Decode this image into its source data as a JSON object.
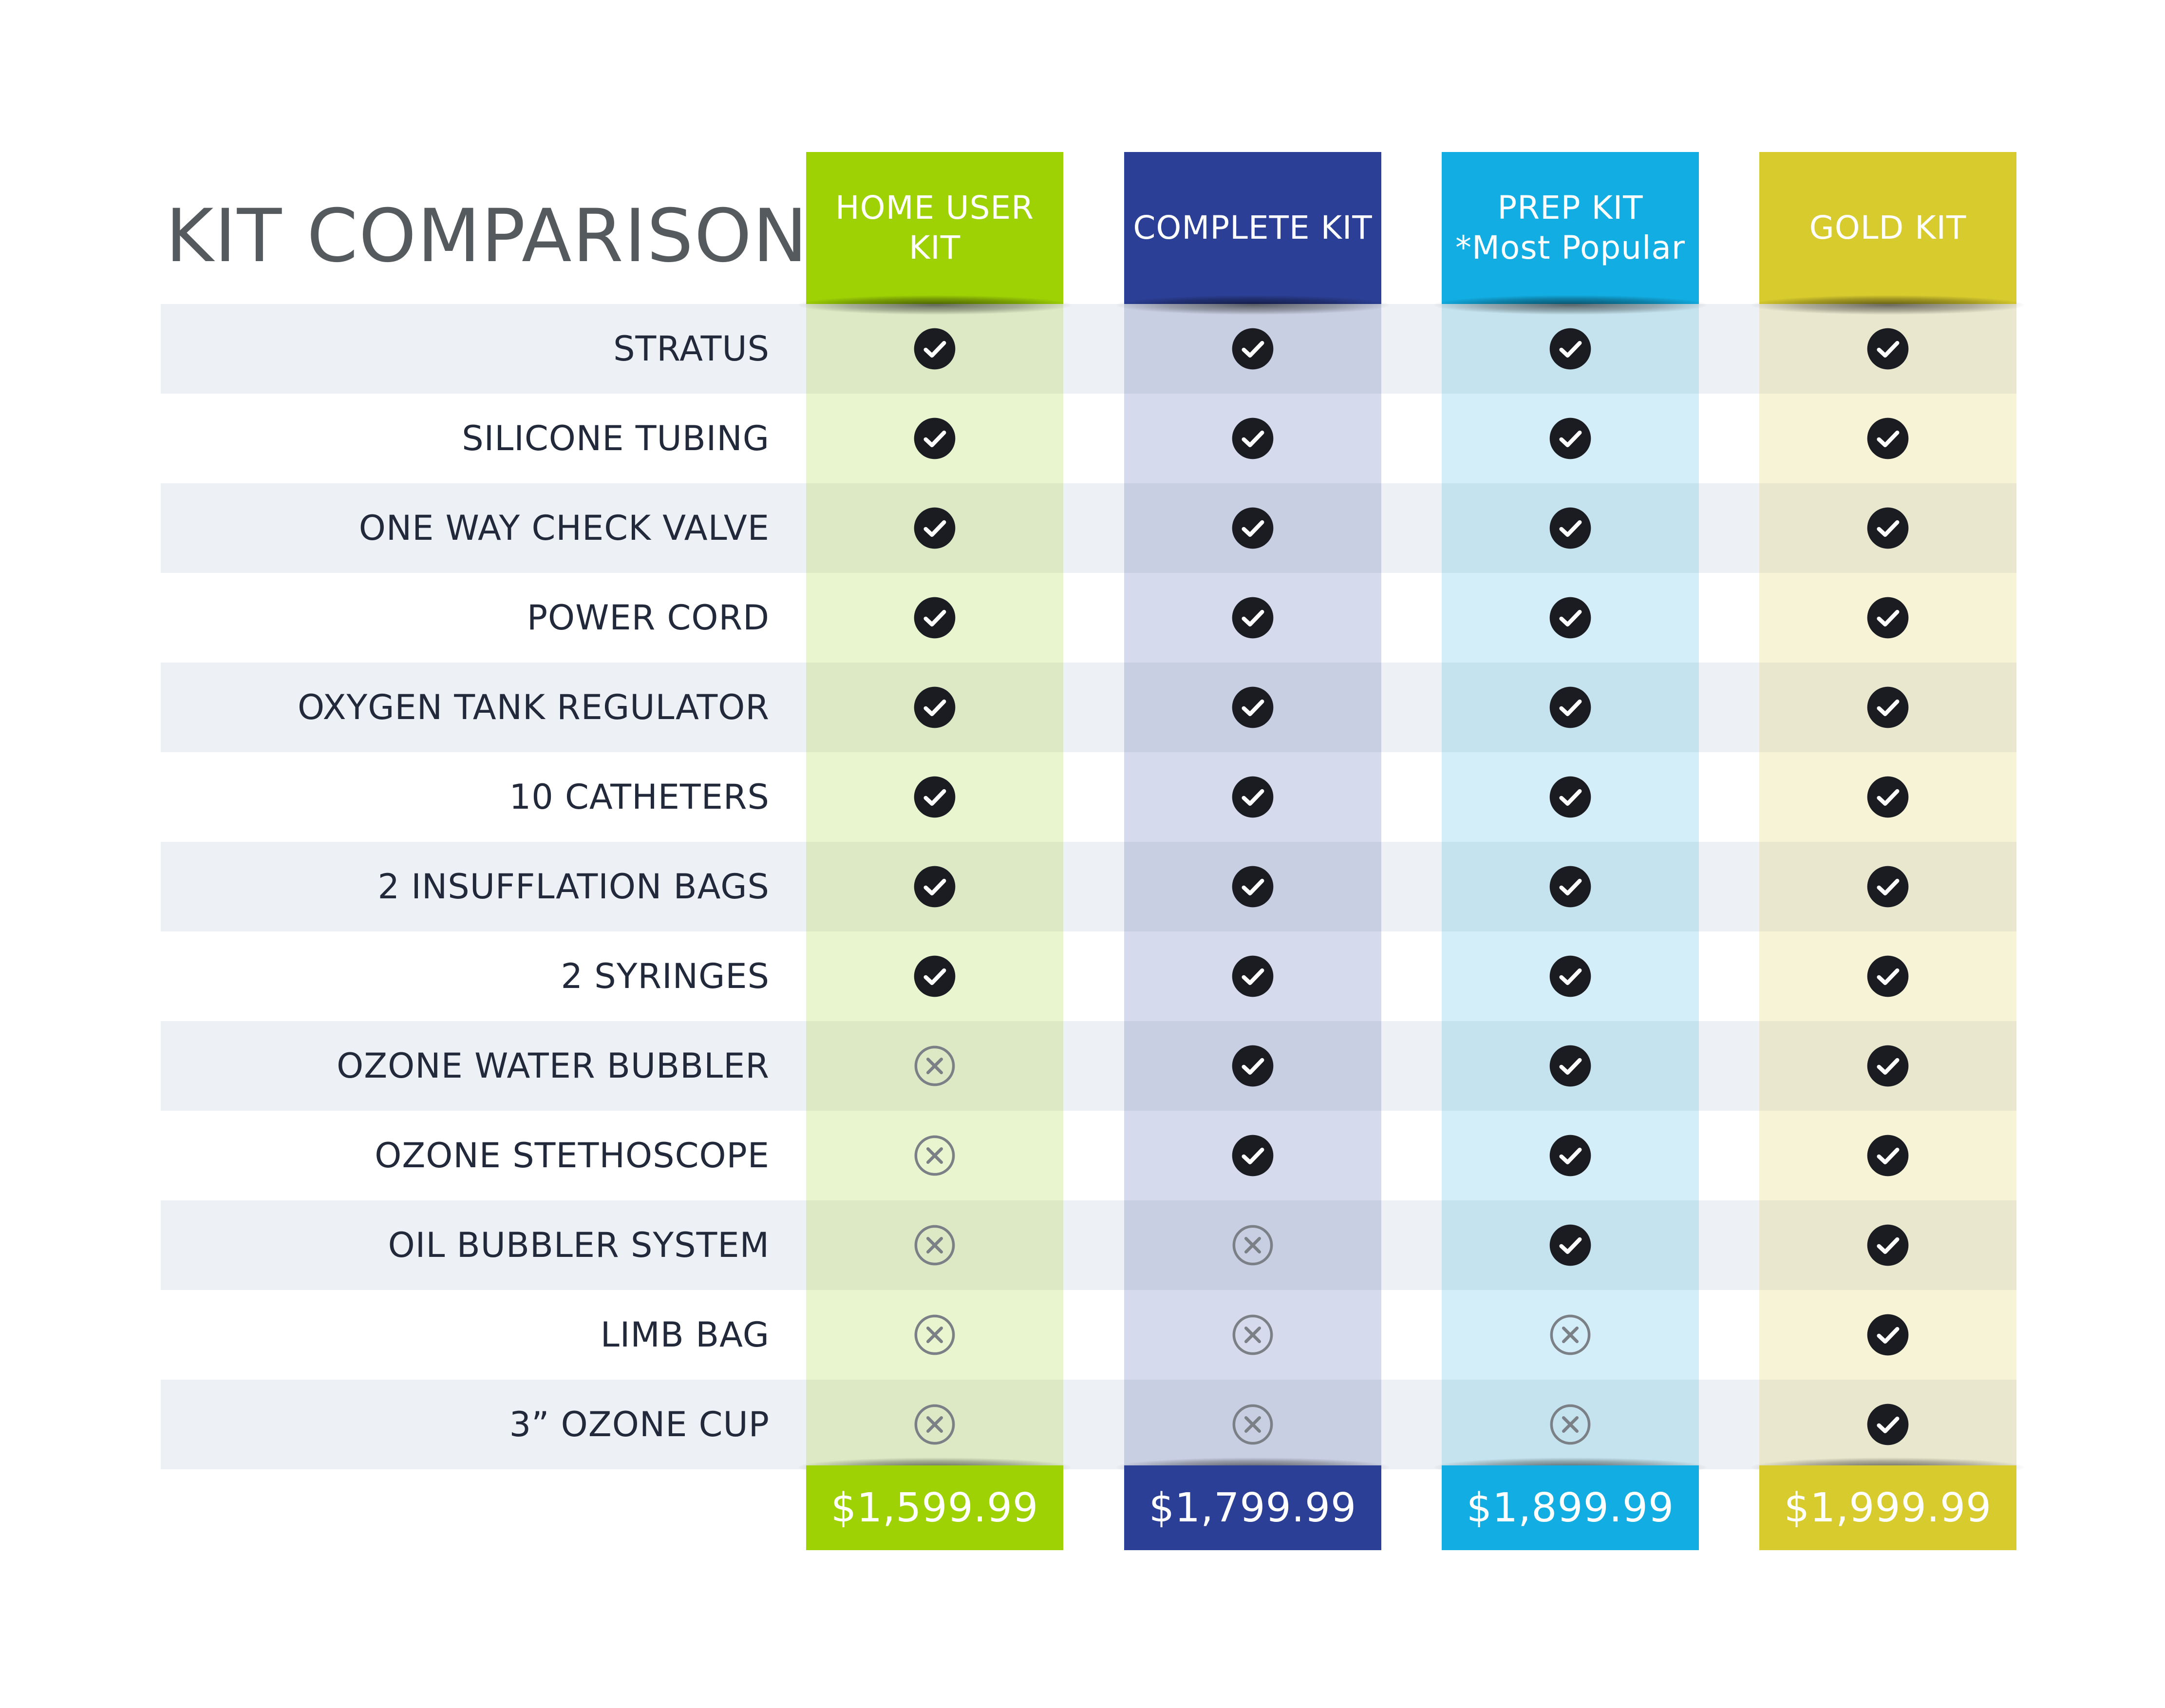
{
  "title": "KIT COMPARISON",
  "kits": [
    {
      "header": [
        "HOME USER",
        "KIT"
      ],
      "price": "$1,599.99",
      "color": "#9fd205",
      "tint": "#e9f5cf",
      "tint_alt": "#dde9c5"
    },
    {
      "header": [
        "COMPLETE KIT"
      ],
      "price": "$1,799.99",
      "color": "#2c3f96",
      "tint": "#d5dbec",
      "tint_alt": "#c8cfe2"
    },
    {
      "header": [
        "PREP KIT",
        "*Most Popular"
      ],
      "price": "$1,899.99",
      "color": "#12ade2",
      "tint": "#d3eef8",
      "tint_alt": "#c5e3ee"
    },
    {
      "header": [
        "GOLD KIT"
      ],
      "price": "$1,999.99",
      "color": "#d8cb2e",
      "tint": "#f6f3d6",
      "tint_alt": "#e9e7cd"
    }
  ],
  "features": [
    {
      "label": "STRATUS",
      "included": [
        true,
        true,
        true,
        true
      ]
    },
    {
      "label": "SILICONE TUBING",
      "included": [
        true,
        true,
        true,
        true
      ]
    },
    {
      "label": "ONE WAY CHECK VALVE",
      "included": [
        true,
        true,
        true,
        true
      ]
    },
    {
      "label": "POWER CORD",
      "included": [
        true,
        true,
        true,
        true
      ]
    },
    {
      "label": "OXYGEN TANK REGULATOR",
      "included": [
        true,
        true,
        true,
        true
      ]
    },
    {
      "label": "10 CATHETERS",
      "included": [
        true,
        true,
        true,
        true
      ]
    },
    {
      "label": "2 INSUFFLATION BAGS",
      "included": [
        true,
        true,
        true,
        true
      ]
    },
    {
      "label": "2 SYRINGES",
      "included": [
        true,
        true,
        true,
        true
      ]
    },
    {
      "label": "OZONE WATER BUBBLER",
      "included": [
        false,
        true,
        true,
        true
      ]
    },
    {
      "label": "OZONE STETHOSCOPE",
      "included": [
        false,
        true,
        true,
        true
      ]
    },
    {
      "label": "OIL BUBBLER SYSTEM",
      "included": [
        false,
        false,
        true,
        true
      ]
    },
    {
      "label": "LIMB BAG",
      "included": [
        false,
        false,
        false,
        true
      ]
    },
    {
      "label": "3” OZONE CUP",
      "included": [
        false,
        false,
        false,
        true
      ]
    }
  ],
  "icons": {
    "included": "check-circle-icon",
    "excluded": "x-circle-icon"
  }
}
